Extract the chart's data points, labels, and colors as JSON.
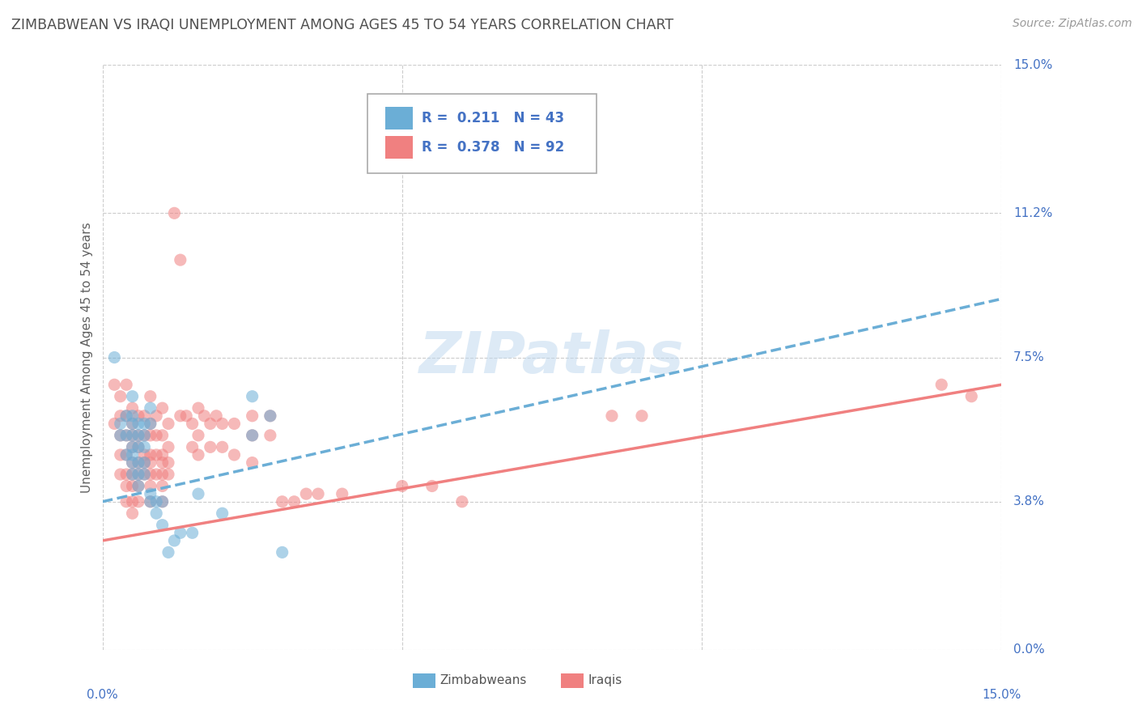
{
  "title": "ZIMBABWEAN VS IRAQI UNEMPLOYMENT AMONG AGES 45 TO 54 YEARS CORRELATION CHART",
  "source": "Source: ZipAtlas.com",
  "ylabel": "Unemployment Among Ages 45 to 54 years",
  "xmin": 0.0,
  "xmax": 0.15,
  "ymin": 0.0,
  "ymax": 0.15,
  "yticks": [
    0.0,
    0.038,
    0.075,
    0.112,
    0.15
  ],
  "ytick_labels": [
    "0.0%",
    "3.8%",
    "7.5%",
    "11.2%",
    "15.0%"
  ],
  "xtick_labels_left": "0.0%",
  "xtick_labels_right": "15.0%",
  "zimbabwe_color": "#6BAED6",
  "iraq_color": "#F08080",
  "legend_R_zim": "0.211",
  "legend_N_zim": "43",
  "legend_R_iraq": "0.378",
  "legend_N_iraq": "92",
  "watermark_text": "ZIPatlas",
  "background_color": "#FFFFFF",
  "grid_color": "#CCCCCC",
  "title_color": "#505050",
  "axis_label_color": "#4472C4",
  "zimbabwe_scatter": [
    [
      0.002,
      0.075
    ],
    [
      0.003,
      0.058
    ],
    [
      0.003,
      0.055
    ],
    [
      0.004,
      0.06
    ],
    [
      0.004,
      0.055
    ],
    [
      0.004,
      0.05
    ],
    [
      0.005,
      0.065
    ],
    [
      0.005,
      0.06
    ],
    [
      0.005,
      0.058
    ],
    [
      0.005,
      0.055
    ],
    [
      0.005,
      0.052
    ],
    [
      0.005,
      0.05
    ],
    [
      0.005,
      0.048
    ],
    [
      0.005,
      0.045
    ],
    [
      0.006,
      0.058
    ],
    [
      0.006,
      0.055
    ],
    [
      0.006,
      0.052
    ],
    [
      0.006,
      0.048
    ],
    [
      0.006,
      0.045
    ],
    [
      0.006,
      0.042
    ],
    [
      0.007,
      0.058
    ],
    [
      0.007,
      0.055
    ],
    [
      0.007,
      0.052
    ],
    [
      0.007,
      0.048
    ],
    [
      0.007,
      0.045
    ],
    [
      0.008,
      0.062
    ],
    [
      0.008,
      0.058
    ],
    [
      0.008,
      0.04
    ],
    [
      0.008,
      0.038
    ],
    [
      0.009,
      0.038
    ],
    [
      0.009,
      0.035
    ],
    [
      0.01,
      0.038
    ],
    [
      0.01,
      0.032
    ],
    [
      0.011,
      0.025
    ],
    [
      0.012,
      0.028
    ],
    [
      0.013,
      0.03
    ],
    [
      0.015,
      0.03
    ],
    [
      0.016,
      0.04
    ],
    [
      0.02,
      0.035
    ],
    [
      0.025,
      0.055
    ],
    [
      0.025,
      0.065
    ],
    [
      0.028,
      0.06
    ],
    [
      0.03,
      0.025
    ]
  ],
  "iraq_scatter": [
    [
      0.002,
      0.068
    ],
    [
      0.002,
      0.058
    ],
    [
      0.003,
      0.065
    ],
    [
      0.003,
      0.06
    ],
    [
      0.003,
      0.055
    ],
    [
      0.003,
      0.05
    ],
    [
      0.003,
      0.045
    ],
    [
      0.004,
      0.068
    ],
    [
      0.004,
      0.06
    ],
    [
      0.004,
      0.055
    ],
    [
      0.004,
      0.05
    ],
    [
      0.004,
      0.045
    ],
    [
      0.004,
      0.042
    ],
    [
      0.004,
      0.038
    ],
    [
      0.005,
      0.062
    ],
    [
      0.005,
      0.058
    ],
    [
      0.005,
      0.055
    ],
    [
      0.005,
      0.052
    ],
    [
      0.005,
      0.048
    ],
    [
      0.005,
      0.045
    ],
    [
      0.005,
      0.042
    ],
    [
      0.005,
      0.038
    ],
    [
      0.005,
      0.035
    ],
    [
      0.006,
      0.06
    ],
    [
      0.006,
      0.055
    ],
    [
      0.006,
      0.052
    ],
    [
      0.006,
      0.048
    ],
    [
      0.006,
      0.045
    ],
    [
      0.006,
      0.042
    ],
    [
      0.006,
      0.038
    ],
    [
      0.007,
      0.06
    ],
    [
      0.007,
      0.055
    ],
    [
      0.007,
      0.05
    ],
    [
      0.007,
      0.048
    ],
    [
      0.007,
      0.045
    ],
    [
      0.008,
      0.065
    ],
    [
      0.008,
      0.058
    ],
    [
      0.008,
      0.055
    ],
    [
      0.008,
      0.05
    ],
    [
      0.008,
      0.048
    ],
    [
      0.008,
      0.045
    ],
    [
      0.008,
      0.042
    ],
    [
      0.008,
      0.038
    ],
    [
      0.009,
      0.06
    ],
    [
      0.009,
      0.055
    ],
    [
      0.009,
      0.05
    ],
    [
      0.009,
      0.045
    ],
    [
      0.01,
      0.062
    ],
    [
      0.01,
      0.055
    ],
    [
      0.01,
      0.05
    ],
    [
      0.01,
      0.048
    ],
    [
      0.01,
      0.045
    ],
    [
      0.01,
      0.042
    ],
    [
      0.01,
      0.038
    ],
    [
      0.011,
      0.058
    ],
    [
      0.011,
      0.052
    ],
    [
      0.011,
      0.048
    ],
    [
      0.011,
      0.045
    ],
    [
      0.012,
      0.112
    ],
    [
      0.013,
      0.1
    ],
    [
      0.013,
      0.06
    ],
    [
      0.014,
      0.06
    ],
    [
      0.015,
      0.058
    ],
    [
      0.015,
      0.052
    ],
    [
      0.016,
      0.062
    ],
    [
      0.016,
      0.055
    ],
    [
      0.016,
      0.05
    ],
    [
      0.017,
      0.06
    ],
    [
      0.018,
      0.058
    ],
    [
      0.018,
      0.052
    ],
    [
      0.019,
      0.06
    ],
    [
      0.02,
      0.058
    ],
    [
      0.02,
      0.052
    ],
    [
      0.022,
      0.058
    ],
    [
      0.022,
      0.05
    ],
    [
      0.025,
      0.06
    ],
    [
      0.025,
      0.055
    ],
    [
      0.025,
      0.048
    ],
    [
      0.028,
      0.06
    ],
    [
      0.028,
      0.055
    ],
    [
      0.03,
      0.038
    ],
    [
      0.032,
      0.038
    ],
    [
      0.034,
      0.04
    ],
    [
      0.036,
      0.04
    ],
    [
      0.04,
      0.04
    ],
    [
      0.05,
      0.042
    ],
    [
      0.055,
      0.042
    ],
    [
      0.06,
      0.038
    ],
    [
      0.085,
      0.06
    ],
    [
      0.09,
      0.06
    ],
    [
      0.14,
      0.068
    ],
    [
      0.145,
      0.065
    ]
  ],
  "zim_trend": [
    0.0,
    0.038,
    0.15,
    0.09
  ],
  "iraq_trend": [
    0.0,
    0.028,
    0.15,
    0.068
  ]
}
